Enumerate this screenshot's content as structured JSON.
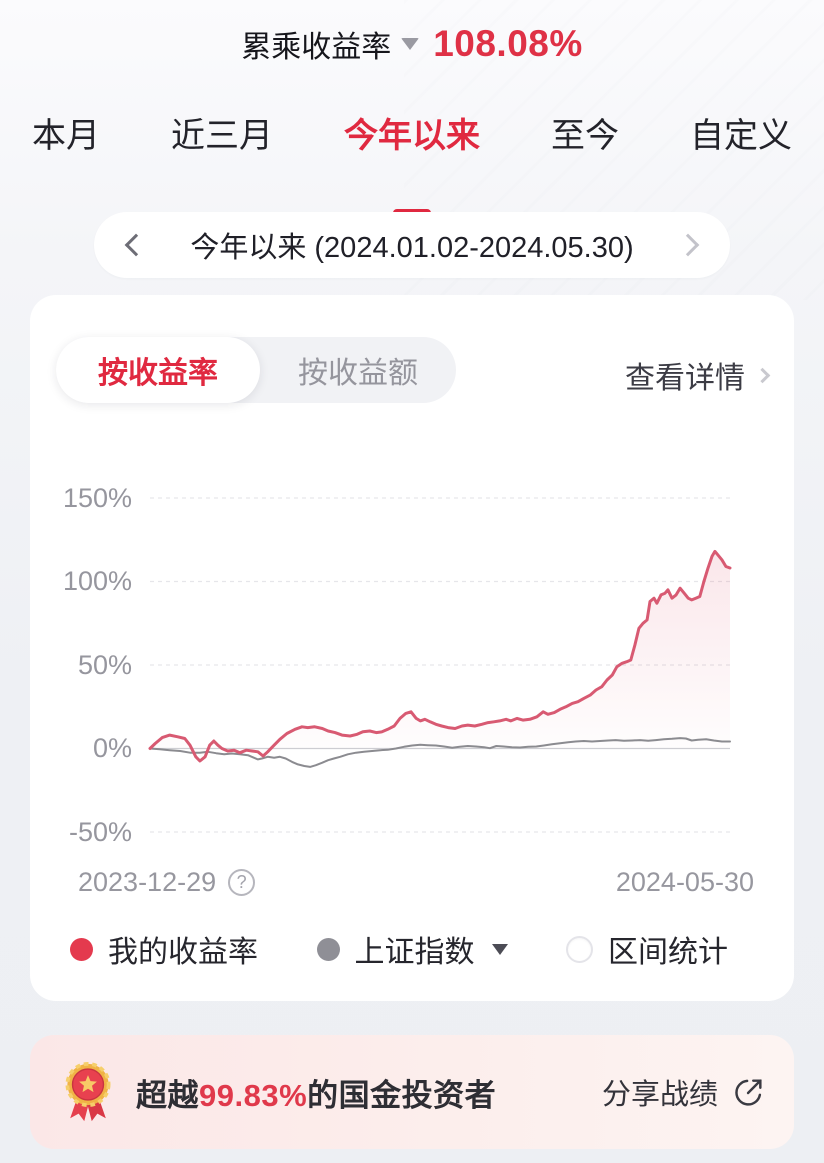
{
  "header": {
    "metric_label": "累乘收益率",
    "value": "108.08%"
  },
  "period_tabs": {
    "items": [
      {
        "label": "本月"
      },
      {
        "label": "近三月"
      },
      {
        "label": "今年以来"
      },
      {
        "label": "至今"
      },
      {
        "label": "自定义"
      }
    ]
  },
  "range_selector": {
    "label": "今年以来 (2024.01.02-2024.05.30)"
  },
  "panel": {
    "mode_tabs": [
      {
        "label": "按收益率"
      },
      {
        "label": "按收益额"
      }
    ],
    "detail_link": "查看详情"
  },
  "chart_data": {
    "type": "line",
    "title": "",
    "xlabel": "",
    "ylabel": "",
    "x_start": "2023-12-29",
    "x_end": "2024-05-30",
    "ylim": [
      -50,
      150
    ],
    "grid": "horizontal-dashed, solid zero line",
    "legend_position": "bottom",
    "yticks": [
      {
        "label": "150%",
        "value": 150
      },
      {
        "label": "100%",
        "value": 100
      },
      {
        "label": "50%",
        "value": 50
      },
      {
        "label": "0%",
        "value": 0
      },
      {
        "label": "-50%",
        "value": -50
      }
    ],
    "legend": [
      {
        "label": "我的收益率",
        "marker": "dot",
        "color": "#e43a4e"
      },
      {
        "label": "上证指数",
        "marker": "dot",
        "color": "#8f8f96",
        "dropdown": true
      },
      {
        "label": "区间统计",
        "marker": "circle-empty",
        "color": "#ffffff"
      }
    ],
    "series": [
      {
        "name": "我的收益率",
        "color": "#d85a72",
        "fill": true,
        "unit": "%",
        "points": [
          [
            0,
            0
          ],
          [
            0.009,
            3
          ],
          [
            0.021,
            6.5
          ],
          [
            0.034,
            8
          ],
          [
            0.048,
            7
          ],
          [
            0.06,
            6
          ],
          [
            0.069,
            2
          ],
          [
            0.079,
            -5
          ],
          [
            0.086,
            -7.5
          ],
          [
            0.095,
            -5
          ],
          [
            0.103,
            2
          ],
          [
            0.11,
            4.5
          ],
          [
            0.117,
            2
          ],
          [
            0.124,
            0
          ],
          [
            0.134,
            -1.5
          ],
          [
            0.145,
            -1
          ],
          [
            0.155,
            -2.5
          ],
          [
            0.166,
            -1
          ],
          [
            0.176,
            -1.5
          ],
          [
            0.186,
            -2
          ],
          [
            0.195,
            -4.5
          ],
          [
            0.203,
            -2
          ],
          [
            0.214,
            2
          ],
          [
            0.224,
            5.5
          ],
          [
            0.236,
            9
          ],
          [
            0.25,
            11.5
          ],
          [
            0.262,
            13
          ],
          [
            0.272,
            12.5
          ],
          [
            0.284,
            13
          ],
          [
            0.297,
            12
          ],
          [
            0.307,
            10.5
          ],
          [
            0.319,
            9.5
          ],
          [
            0.331,
            8
          ],
          [
            0.345,
            7.5
          ],
          [
            0.357,
            8.5
          ],
          [
            0.367,
            10
          ],
          [
            0.379,
            10.5
          ],
          [
            0.39,
            9.5
          ],
          [
            0.4,
            10
          ],
          [
            0.41,
            11.5
          ],
          [
            0.421,
            13.5
          ],
          [
            0.431,
            18
          ],
          [
            0.441,
            21
          ],
          [
            0.45,
            22
          ],
          [
            0.459,
            18
          ],
          [
            0.466,
            16.5
          ],
          [
            0.474,
            17.5
          ],
          [
            0.483,
            16
          ],
          [
            0.493,
            14.5
          ],
          [
            0.503,
            13.5
          ],
          [
            0.514,
            12.5
          ],
          [
            0.526,
            12
          ],
          [
            0.538,
            13.5
          ],
          [
            0.548,
            14
          ],
          [
            0.56,
            13.5
          ],
          [
            0.572,
            14.5
          ],
          [
            0.583,
            15.5
          ],
          [
            0.593,
            16
          ],
          [
            0.603,
            16.5
          ],
          [
            0.614,
            17.5
          ],
          [
            0.622,
            16.5
          ],
          [
            0.633,
            18
          ],
          [
            0.643,
            17
          ],
          [
            0.655,
            17.5
          ],
          [
            0.667,
            19
          ],
          [
            0.678,
            22
          ],
          [
            0.686,
            20.5
          ],
          [
            0.697,
            21.5
          ],
          [
            0.707,
            23.5
          ],
          [
            0.717,
            25
          ],
          [
            0.728,
            27
          ],
          [
            0.738,
            28
          ],
          [
            0.748,
            30
          ],
          [
            0.759,
            32
          ],
          [
            0.769,
            35
          ],
          [
            0.779,
            37
          ],
          [
            0.788,
            41
          ],
          [
            0.797,
            44
          ],
          [
            0.805,
            49
          ],
          [
            0.814,
            51
          ],
          [
            0.822,
            52
          ],
          [
            0.829,
            53
          ],
          [
            0.836,
            62
          ],
          [
            0.843,
            72
          ],
          [
            0.85,
            75
          ],
          [
            0.857,
            77
          ],
          [
            0.862,
            88
          ],
          [
            0.869,
            90
          ],
          [
            0.874,
            87
          ],
          [
            0.881,
            92
          ],
          [
            0.888,
            93
          ],
          [
            0.893,
            95
          ],
          [
            0.9,
            90
          ],
          [
            0.907,
            92
          ],
          [
            0.914,
            96
          ],
          [
            0.921,
            93
          ],
          [
            0.928,
            90
          ],
          [
            0.934,
            89
          ],
          [
            0.941,
            90
          ],
          [
            0.948,
            91
          ],
          [
            0.955,
            100
          ],
          [
            0.962,
            108
          ],
          [
            0.969,
            115
          ],
          [
            0.974,
            118
          ],
          [
            0.979,
            116
          ],
          [
            0.986,
            113
          ],
          [
            0.993,
            109
          ],
          [
            1,
            108.08
          ]
        ]
      },
      {
        "name": "上证指数",
        "color": "#8b8b90",
        "fill": false,
        "unit": "%",
        "points": [
          [
            0,
            0
          ],
          [
            0.017,
            -0.5
          ],
          [
            0.034,
            -1
          ],
          [
            0.052,
            -1.5
          ],
          [
            0.069,
            -2.5
          ],
          [
            0.086,
            -2.5
          ],
          [
            0.1,
            -2
          ],
          [
            0.114,
            -2.8
          ],
          [
            0.128,
            -3.5
          ],
          [
            0.141,
            -3
          ],
          [
            0.155,
            -3.5
          ],
          [
            0.169,
            -4
          ],
          [
            0.179,
            -5.5
          ],
          [
            0.186,
            -6.5
          ],
          [
            0.193,
            -6
          ],
          [
            0.203,
            -5
          ],
          [
            0.214,
            -5.5
          ],
          [
            0.224,
            -5
          ],
          [
            0.234,
            -6
          ],
          [
            0.245,
            -8
          ],
          [
            0.255,
            -9.5
          ],
          [
            0.266,
            -10.5
          ],
          [
            0.276,
            -11
          ],
          [
            0.286,
            -10
          ],
          [
            0.297,
            -8.5
          ],
          [
            0.307,
            -7
          ],
          [
            0.317,
            -6
          ],
          [
            0.328,
            -5
          ],
          [
            0.341,
            -3.5
          ],
          [
            0.355,
            -2.5
          ],
          [
            0.369,
            -2
          ],
          [
            0.383,
            -1.5
          ],
          [
            0.397,
            -1
          ],
          [
            0.41,
            -0.8
          ],
          [
            0.424,
            0
          ],
          [
            0.438,
            1
          ],
          [
            0.452,
            1.8
          ],
          [
            0.466,
            2.2
          ],
          [
            0.479,
            2
          ],
          [
            0.493,
            1.8
          ],
          [
            0.507,
            1.2
          ],
          [
            0.521,
            0.5
          ],
          [
            0.534,
            1
          ],
          [
            0.548,
            1.5
          ],
          [
            0.562,
            1.2
          ],
          [
            0.576,
            0.8
          ],
          [
            0.586,
            0.2
          ],
          [
            0.597,
            1.5
          ],
          [
            0.61,
            1.2
          ],
          [
            0.624,
            0.8
          ],
          [
            0.638,
            0.6
          ],
          [
            0.652,
            1
          ],
          [
            0.666,
            1.2
          ],
          [
            0.679,
            1.8
          ],
          [
            0.693,
            2.5
          ],
          [
            0.707,
            3.2
          ],
          [
            0.721,
            3.8
          ],
          [
            0.734,
            4.2
          ],
          [
            0.748,
            4.5
          ],
          [
            0.762,
            4.2
          ],
          [
            0.776,
            4.5
          ],
          [
            0.79,
            4.8
          ],
          [
            0.803,
            5
          ],
          [
            0.817,
            4.6
          ],
          [
            0.831,
            4.8
          ],
          [
            0.845,
            5
          ],
          [
            0.859,
            4.6
          ],
          [
            0.872,
            5
          ],
          [
            0.886,
            5.5
          ],
          [
            0.9,
            5.8
          ],
          [
            0.914,
            6.2
          ],
          [
            0.924,
            6
          ],
          [
            0.934,
            4.8
          ],
          [
            0.945,
            5.2
          ],
          [
            0.959,
            5.5
          ],
          [
            0.972,
            4.8
          ],
          [
            0.986,
            4.2
          ],
          [
            1,
            4.2
          ]
        ]
      }
    ]
  },
  "banner": {
    "prefix": "超越",
    "percent": "99.83%",
    "suffix": "的国金投资者",
    "share_label": "分享战绩"
  },
  "colors": {
    "accent_red": "#e02940",
    "value_red": "#df3146",
    "line_red": "#d85a72",
    "line_gray": "#8b8b90",
    "banner_pink": "#fbe7e7"
  }
}
